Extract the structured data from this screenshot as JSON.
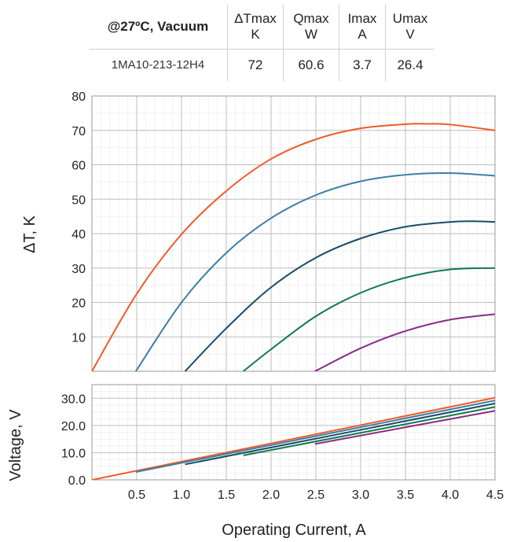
{
  "spec_table": {
    "condition": "@27ºC, Vacuum",
    "columns": [
      {
        "name": "ΔTmax",
        "unit": "K"
      },
      {
        "name": "Qmax",
        "unit": "W"
      },
      {
        "name": "Imax",
        "unit": "A"
      },
      {
        "name": "Umax",
        "unit": "V"
      }
    ],
    "model": "1MA10-213-12H4",
    "values": [
      "72",
      "60.6",
      "3.7",
      "26.4"
    ]
  },
  "chart_data": [
    {
      "type": "line",
      "ylabel": "ΔT, K",
      "xlim": [
        0,
        4.5
      ],
      "ylim": [
        0,
        80
      ],
      "yticks": [
        "10",
        "20",
        "30",
        "40",
        "50",
        "60",
        "70",
        "80"
      ],
      "grid": true,
      "series": [
        {
          "color": "#f05a28",
          "x": [
            0,
            0.5,
            1.0,
            1.5,
            2.0,
            2.5,
            3.0,
            3.5,
            3.75,
            4.0,
            4.5
          ],
          "y": [
            0,
            22.5,
            39.8,
            52.4,
            61.7,
            67.4,
            70.6,
            71.8,
            71.9,
            71.7,
            70.0
          ]
        },
        {
          "color": "#3c7fa4",
          "x": [
            0.49,
            1.0,
            1.5,
            2.0,
            2.5,
            3.0,
            3.5,
            4.0,
            4.5
          ],
          "y": [
            0,
            20.0,
            34.4,
            44.5,
            51.2,
            55.2,
            57.1,
            57.6,
            56.8
          ]
        },
        {
          "color": "#1a4b6b",
          "x": [
            1.04,
            1.5,
            2.0,
            2.5,
            3.0,
            3.5,
            4.0,
            4.25,
            4.5
          ],
          "y": [
            0,
            12.5,
            24.4,
            33.0,
            38.6,
            42.0,
            43.4,
            43.6,
            43.4
          ]
        },
        {
          "color": "#0e7a4a",
          "x": [
            1.69,
            2.0,
            2.5,
            3.0,
            3.5,
            4.0,
            4.5
          ],
          "y": [
            0,
            6.4,
            16.0,
            22.8,
            27.2,
            29.6,
            30.0
          ]
        },
        {
          "color": "#8a2a85",
          "x": [
            2.49,
            3.0,
            3.5,
            4.0,
            4.5
          ],
          "y": [
            0,
            6.7,
            11.7,
            15.0,
            16.6
          ]
        }
      ]
    },
    {
      "type": "line",
      "ylabel": "Voltage, V",
      "xlabel": "Operating Current, A",
      "xlim": [
        0,
        4.5
      ],
      "ylim": [
        0,
        35
      ],
      "yticks": [
        "0.0",
        "10.0",
        "20.0",
        "30.0"
      ],
      "xticks": [
        "0.5",
        "1.0",
        "1.5",
        "2.0",
        "2.5",
        "3.0",
        "3.5",
        "4.0",
        "4.5"
      ],
      "grid": true,
      "series": [
        {
          "color": "#f05a28",
          "x": [
            0,
            4.5
          ],
          "y": [
            0,
            30.2
          ]
        },
        {
          "color": "#3c7fa4",
          "x": [
            0.49,
            4.5
          ],
          "y": [
            2.9,
            29.2
          ]
        },
        {
          "color": "#1a4b6b",
          "x": [
            1.04,
            4.5
          ],
          "y": [
            5.7,
            28.1
          ]
        },
        {
          "color": "#0e7a4a",
          "x": [
            1.69,
            4.5
          ],
          "y": [
            9.0,
            26.8
          ]
        },
        {
          "color": "#8a2a85",
          "x": [
            2.49,
            4.5
          ],
          "y": [
            13.2,
            25.4
          ]
        }
      ]
    }
  ]
}
